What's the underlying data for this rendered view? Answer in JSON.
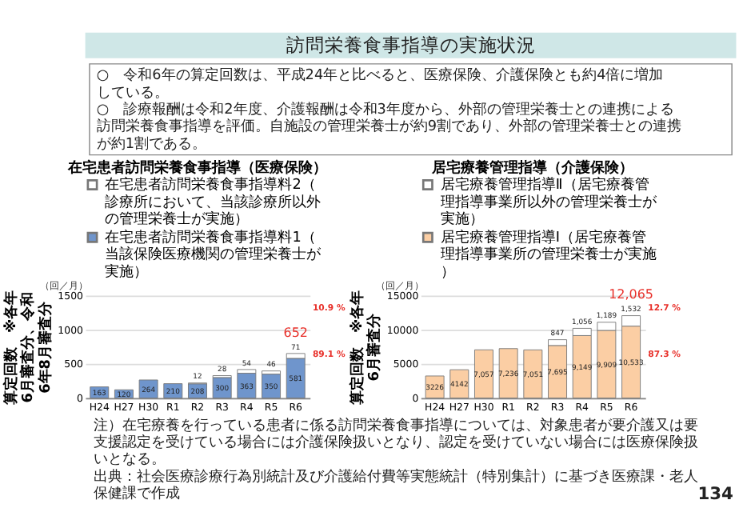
{
  "chart_data": [
    {
      "type": "other",
      "title": "訪問栄養食事指導の実施状況",
      "annotations": [
        "○　令和6年の算定回数は、平成24年と比べると、医療保険、介護保険とも約4倍に増加している。",
        "○　診療報酬は令和2年度、介護報酬は令和3年度から、外部の管理栄養士との連携による訪問栄養食事指導を評価。自施設の管理栄養士が約9割であり、外部の管理栄養士との連携が約1割である。"
      ]
    },
    {
      "type": "bar",
      "stacked": true,
      "title": "在宅患者訪問栄養食事指導（医療保険）",
      "ylabel": "算定回数　※各年6月審査分、令和6年8月審査分",
      "categories": [
        "H24",
        "H27",
        "H30",
        "R1",
        "R2",
        "R3",
        "R4",
        "R5",
        "R6"
      ],
      "series": [
        {
          "name": "在宅患者訪問栄養食事指導料1（当該保険医療機関の管理栄養士が実施）",
          "color": "#6f95cc",
          "values": [
            163,
            120,
            264,
            210,
            208,
            300,
            363,
            350,
            581
          ]
        },
        {
          "name": "在宅患者訪問栄養食事指導料2（診療所において、当該診療所以外の管理栄養士が実施）",
          "color": "#ffffff",
          "values": [
            null,
            null,
            null,
            null,
            12,
            28,
            54,
            46,
            71
          ]
        }
      ],
      "data_labels": true,
      "totals": [
        null,
        null,
        null,
        null,
        null,
        null,
        null,
        null,
        "652"
      ],
      "ylim": [
        0,
        1500
      ],
      "yticks": [
        0,
        500,
        1000,
        1500
      ],
      "grid": "y",
      "legend": "top left",
      "annotations": [
        "（回／月）",
        "10.9 %",
        "89.1 %"
      ]
    },
    {
      "type": "bar",
      "stacked": true,
      "title": "居宅療養管理指導（介護保険）",
      "ylabel": "算定回数　※各年6月審査分",
      "categories": [
        "H24",
        "H27",
        "H30",
        "R1",
        "R2",
        "R3",
        "R4",
        "R5",
        "R6"
      ],
      "series": [
        {
          "name": "居宅療養管理指導Ⅰ（居宅療養管理指導事業所の管理栄養士が実施）",
          "color": "#fbcea4",
          "values": [
            3226,
            4142,
            7057,
            7236,
            7051,
            7695,
            9149,
            9909,
            10533
          ],
          "value_labels": [
            "3226",
            "4142",
            "7,057",
            "7,236",
            "7,051",
            "7,695",
            "9,149",
            "9,909",
            "10,533"
          ]
        },
        {
          "name": "居宅療養管理指導Ⅱ（居宅療養管理指導事業所以外の管理栄養士が実施）",
          "color": "#ffffff",
          "values": [
            null,
            null,
            null,
            null,
            null,
            847,
            1056,
            1189,
            1532
          ],
          "value_labels": [
            null,
            null,
            null,
            null,
            null,
            "847",
            "1,056",
            "1,189",
            "1,532"
          ]
        }
      ],
      "totals": [
        null,
        null,
        null,
        null,
        null,
        null,
        null,
        null,
        "12,065"
      ],
      "ylim": [
        0,
        15000
      ],
      "yticks": [
        0,
        5000,
        10000,
        15000
      ],
      "grid": "y",
      "legend": "top left",
      "annotations": [
        "（回／月）",
        "12.7 %",
        "87.3 %"
      ]
    },
    {
      "type": "other",
      "annotations": [
        "注）在宅療養を行っている患者に係る訪問栄養食事指導については、対象患者が要介護又は要支援認定を受けている場合には介護保険扱いとなり、認定を受けていない場合には医療保険扱いとなる。",
        "出典：社会医療診療行為別統計及び介護給付費等実態統計（特別集計）に基づき医療課・老人保健課で作成",
        "134"
      ]
    }
  ]
}
